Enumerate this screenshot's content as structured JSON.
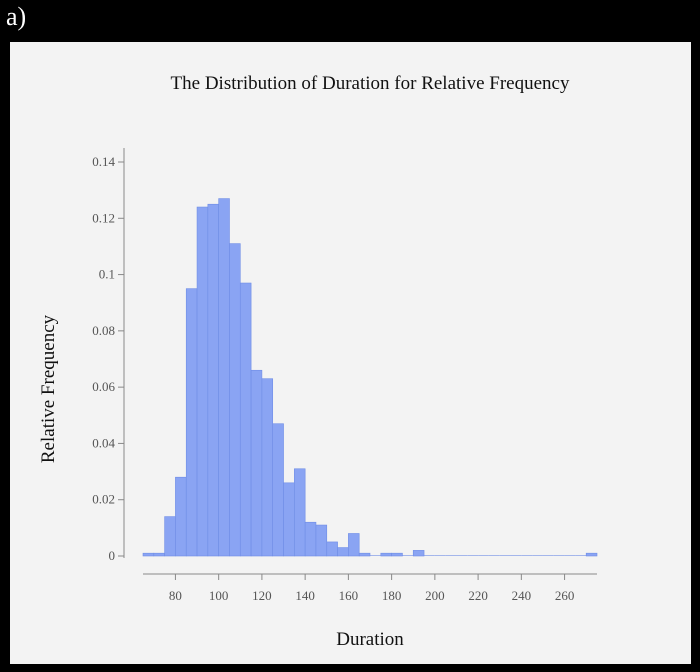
{
  "figure_label": "a)",
  "colors": {
    "background": "#000000",
    "panel": "#f3f3f3",
    "bar_fill": "#8aa4f3",
    "bar_stroke": "#6f8de6",
    "axis": "#888888"
  },
  "chart_data": {
    "type": "bar",
    "title": "The Distribution of Duration for Relative Frequency",
    "xlabel": "Duration",
    "ylabel": "Relative Frequency",
    "xlim": [
      65,
      275
    ],
    "ylim": [
      0,
      0.14
    ],
    "x_ticks": [
      80,
      100,
      120,
      140,
      160,
      180,
      200,
      220,
      240,
      260
    ],
    "y_ticks": [
      0,
      0.02,
      0.04,
      0.06,
      0.08,
      0.1,
      0.12,
      0.14
    ],
    "y_tick_labels": [
      "0",
      "0.02",
      "0.04",
      "0.06",
      "0.08",
      "0.1",
      "0.12",
      "0.14"
    ],
    "bin_width": 5,
    "bin_starts": [
      65,
      70,
      75,
      80,
      85,
      90,
      95,
      100,
      105,
      110,
      115,
      120,
      125,
      130,
      135,
      140,
      145,
      150,
      155,
      160,
      165,
      170,
      175,
      180,
      185,
      190,
      195,
      200,
      205,
      210,
      215,
      220,
      225,
      230,
      235,
      240,
      245,
      250,
      255,
      260,
      265,
      270
    ],
    "values": [
      0.001,
      0.001,
      0.014,
      0.028,
      0.095,
      0.124,
      0.125,
      0.127,
      0.111,
      0.097,
      0.066,
      0.063,
      0.047,
      0.026,
      0.031,
      0.012,
      0.011,
      0.005,
      0.003,
      0.008,
      0.001,
      0,
      0.001,
      0.001,
      0,
      0.002,
      0,
      0,
      0,
      0,
      0,
      0,
      0,
      0,
      0,
      0,
      0,
      0,
      0,
      0,
      0,
      0.001
    ],
    "grid": false
  }
}
